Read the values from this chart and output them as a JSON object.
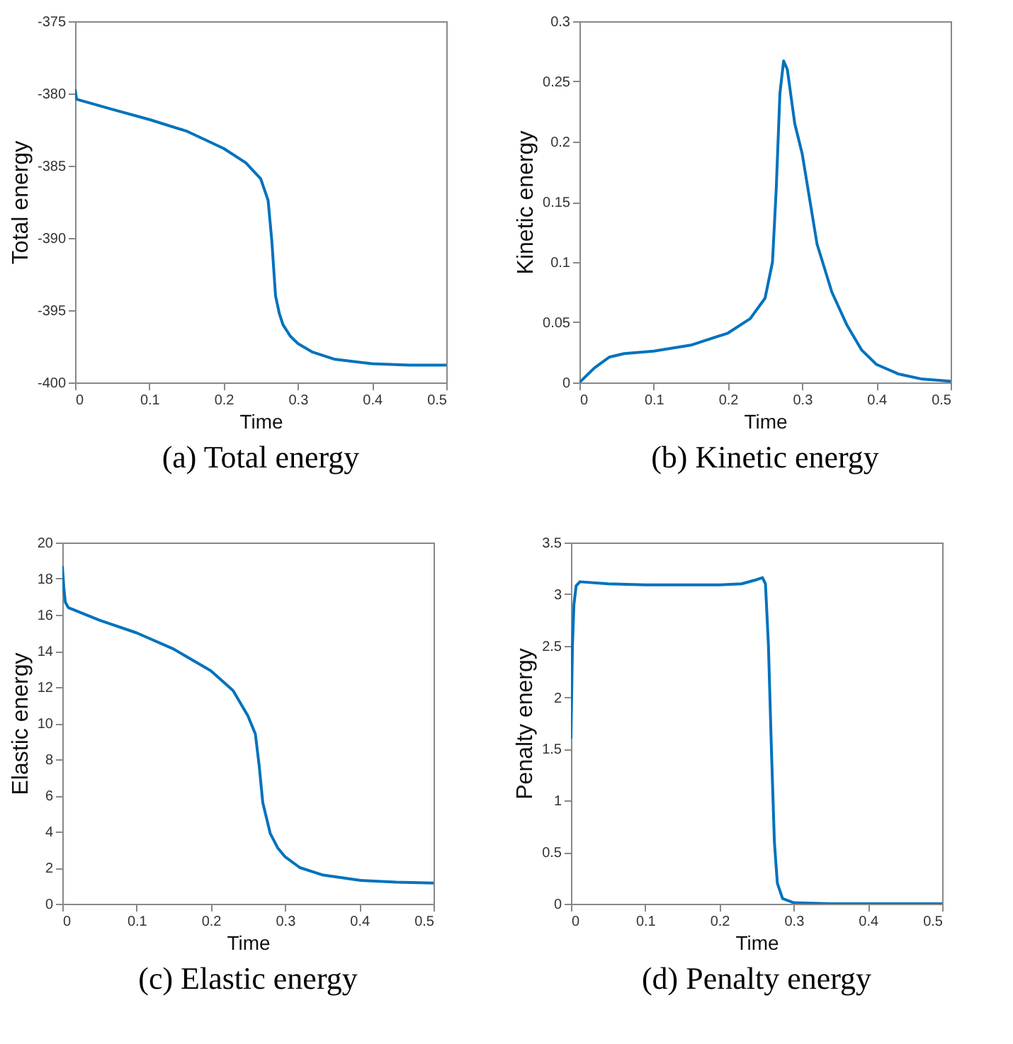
{
  "chart_data": [
    {
      "type": "line",
      "title": "(a)  Total energy",
      "xlabel": "Time",
      "ylabel": "Total energy",
      "color": "#0072bd",
      "x": [
        0,
        0.002,
        0.05,
        0.1,
        0.15,
        0.2,
        0.23,
        0.25,
        0.26,
        0.265,
        0.27,
        0.275,
        0.28,
        0.29,
        0.3,
        0.32,
        0.35,
        0.4,
        0.45,
        0.5
      ],
      "values": [
        -379.7,
        -380.4,
        -381.1,
        -381.8,
        -382.6,
        -383.8,
        -384.8,
        -385.9,
        -387.4,
        -390.2,
        -394,
        -395.2,
        -396,
        -396.8,
        -397.3,
        -397.9,
        -398.4,
        -398.7,
        -398.8,
        -398.8
      ],
      "xlim": [
        0,
        0.5
      ],
      "xticks": [
        0,
        0.1,
        0.2,
        0.3,
        0.4,
        0.5
      ],
      "ylim": [
        -400,
        -375
      ],
      "yticks": [
        -400,
        -395,
        -390,
        -385,
        -380,
        -375
      ]
    },
    {
      "type": "line",
      "title": "(b)  Kinetic energy",
      "xlabel": "Time",
      "ylabel": "Kinetic energy",
      "color": "#0072bd",
      "x": [
        0,
        0.02,
        0.04,
        0.06,
        0.1,
        0.15,
        0.2,
        0.23,
        0.25,
        0.26,
        0.265,
        0.27,
        0.275,
        0.28,
        0.29,
        0.3,
        0.32,
        0.34,
        0.36,
        0.38,
        0.4,
        0.43,
        0.46,
        0.5
      ],
      "values": [
        0,
        0.012,
        0.021,
        0.024,
        0.026,
        0.031,
        0.041,
        0.053,
        0.07,
        0.1,
        0.16,
        0.24,
        0.267,
        0.26,
        0.215,
        0.19,
        0.115,
        0.075,
        0.048,
        0.027,
        0.015,
        0.007,
        0.003,
        0.001
      ],
      "xlim": [
        0,
        0.5
      ],
      "xticks": [
        0,
        0.1,
        0.2,
        0.3,
        0.4,
        0.5
      ],
      "ylim": [
        0,
        0.3
      ],
      "yticks": [
        0,
        0.05,
        0.1,
        0.15,
        0.2,
        0.25,
        0.3
      ]
    },
    {
      "type": "line",
      "title": "(c)  Elastic energy",
      "xlabel": "Time",
      "ylabel": "Elastic energy",
      "color": "#0072bd",
      "x": [
        0,
        0.002,
        0.004,
        0.008,
        0.05,
        0.1,
        0.15,
        0.2,
        0.23,
        0.25,
        0.26,
        0.265,
        0.27,
        0.28,
        0.29,
        0.3,
        0.32,
        0.35,
        0.4,
        0.45,
        0.5
      ],
      "values": [
        18.7,
        17.5,
        16.7,
        16.4,
        15.7,
        15,
        14.1,
        12.9,
        11.8,
        10.4,
        9.4,
        7.7,
        5.6,
        3.9,
        3.1,
        2.6,
        2,
        1.6,
        1.3,
        1.2,
        1.15
      ],
      "xlim": [
        0,
        0.5
      ],
      "xticks": [
        0,
        0.1,
        0.2,
        0.3,
        0.4,
        0.5
      ],
      "ylim": [
        0,
        20
      ],
      "yticks": [
        0,
        2,
        4,
        6,
        8,
        10,
        12,
        14,
        16,
        18,
        20
      ]
    },
    {
      "type": "line",
      "title": "(d)  Penalty energy",
      "xlabel": "Time",
      "ylabel": "Penalty energy",
      "color": "#0072bd",
      "x": [
        0,
        0.002,
        0.004,
        0.007,
        0.012,
        0.05,
        0.1,
        0.15,
        0.2,
        0.23,
        0.25,
        0.258,
        0.262,
        0.266,
        0.27,
        0.274,
        0.278,
        0.285,
        0.3,
        0.35,
        0.5
      ],
      "values": [
        1.6,
        2.5,
        2.9,
        3.08,
        3.12,
        3.1,
        3.09,
        3.09,
        3.09,
        3.1,
        3.14,
        3.16,
        3.1,
        2.5,
        1.5,
        0.6,
        0.2,
        0.05,
        0.01,
        0,
        0
      ],
      "xlim": [
        0,
        0.5
      ],
      "xticks": [
        0,
        0.1,
        0.2,
        0.3,
        0.4,
        0.5
      ],
      "ylim": [
        0,
        3.5
      ],
      "yticks": [
        0,
        0.5,
        1,
        1.5,
        2,
        2.5,
        3,
        3.5
      ]
    }
  ]
}
